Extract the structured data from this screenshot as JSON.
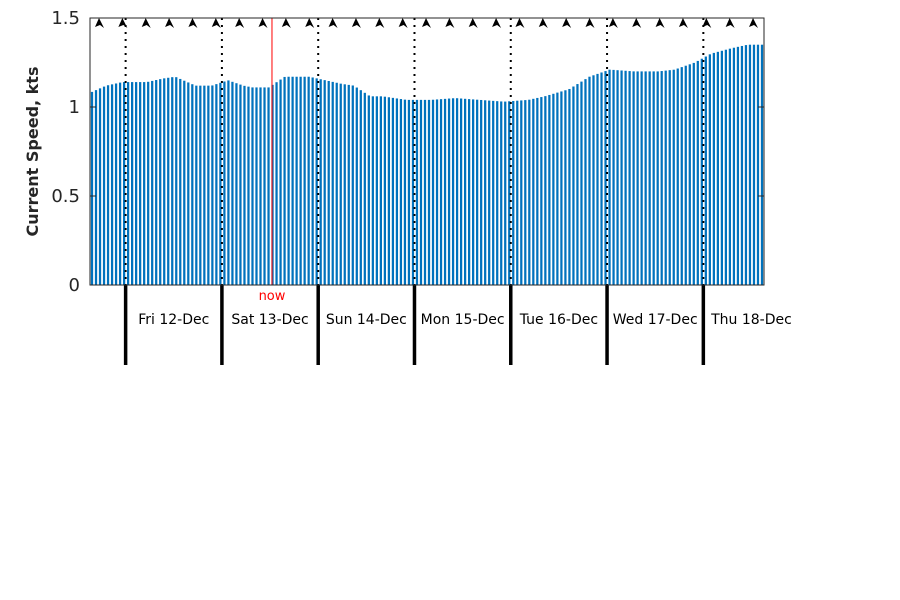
{
  "chart_data": {
    "type": "bar",
    "ylabel": "Current Speed, kts",
    "ylim": [
      0,
      1.5
    ],
    "yticks": [
      "0",
      "0.5",
      "1",
      "1.5"
    ],
    "yticks_values": [
      0,
      0.5,
      1,
      1.5
    ],
    "bar_color": "#0072bd",
    "now_color": "#ff0000",
    "now_label": "now",
    "now_position_days": 1.89,
    "x_range_days": [
      0,
      7.0
    ],
    "day_boundaries_days": [
      0.37,
      1.37,
      2.37,
      3.37,
      4.37,
      5.37,
      6.37
    ],
    "days": [
      "Fri 12-Dec",
      "Sat 13-Dec",
      "Sun 14-Dec",
      "Mon 15-Dec",
      "Tue 16-Dec",
      "Wed 17-Dec",
      "Thu 18-Dec"
    ],
    "direction_arrow_icon": "up-arrowhead-icon",
    "direction_arrow_count": 29,
    "speed_profile": [
      [
        0.0,
        1.08
      ],
      [
        0.2,
        1.12
      ],
      [
        0.4,
        1.14
      ],
      [
        0.7,
        1.14
      ],
      [
        0.9,
        1.16
      ],
      [
        1.05,
        1.17
      ],
      [
        1.3,
        1.12
      ],
      [
        1.5,
        1.12
      ],
      [
        1.7,
        1.15
      ],
      [
        1.89,
        1.12
      ],
      [
        2.0,
        1.11
      ],
      [
        2.2,
        1.11
      ],
      [
        2.4,
        1.17
      ],
      [
        2.7,
        1.17
      ],
      [
        2.9,
        1.15
      ],
      [
        3.1,
        1.13
      ],
      [
        3.25,
        1.12
      ],
      [
        3.45,
        1.06
      ],
      [
        3.6,
        1.06
      ],
      [
        3.9,
        1.04
      ],
      [
        4.2,
        1.04
      ],
      [
        4.5,
        1.05
      ],
      [
        4.8,
        1.04
      ],
      [
        5.1,
        1.03
      ],
      [
        5.4,
        1.04
      ],
      [
        5.6,
        1.06
      ],
      [
        5.9,
        1.1
      ],
      [
        6.15,
        1.17
      ],
      [
        6.4,
        1.21
      ],
      [
        6.7,
        1.2
      ],
      [
        7.0,
        1.2
      ],
      [
        7.2,
        1.21
      ],
      [
        7.45,
        1.25
      ],
      [
        7.65,
        1.3
      ],
      [
        7.9,
        1.33
      ],
      [
        8.1,
        1.35
      ],
      [
        8.3,
        1.35
      ]
    ],
    "speed_profile_units": "x in days from axis start (2-hourly bars), y in kts",
    "x_profile_max_days": 8.3,
    "bar_step_days": 0.04167
  }
}
